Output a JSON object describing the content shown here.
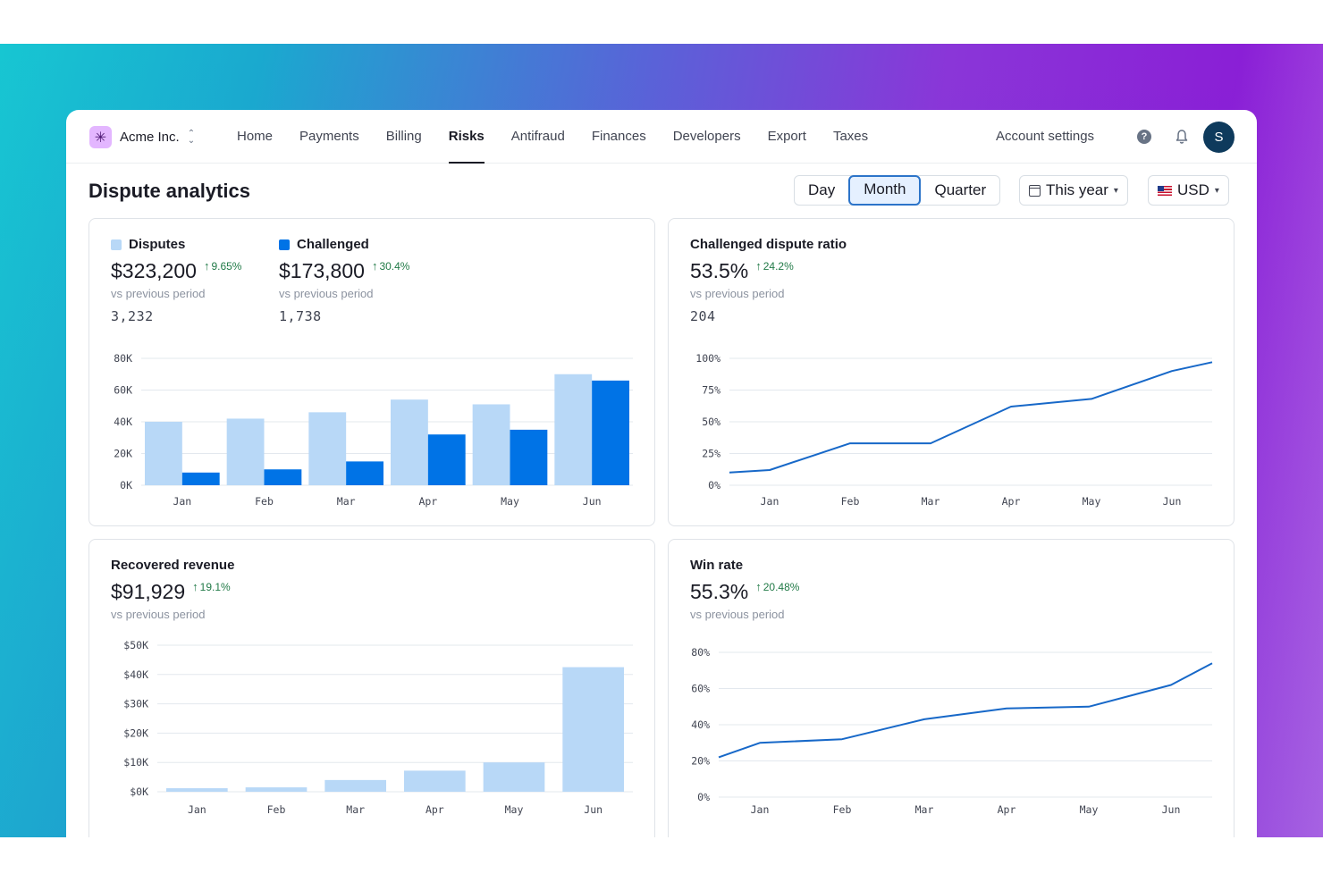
{
  "nav": {
    "brand": "Acme Inc.",
    "links": [
      "Home",
      "Payments",
      "Billing",
      "Risks",
      "Antifraud",
      "Finances",
      "Developers",
      "Export",
      "Taxes"
    ],
    "active": "Risks",
    "account_settings": "Account settings",
    "avatar_initial": "S",
    "icons": [
      "asterisk-logo-icon",
      "chevron-updown-icon",
      "help-icon",
      "bell-icon"
    ]
  },
  "page": {
    "title": "Dispute analytics",
    "granularity": [
      "Day",
      "Month",
      "Quarter"
    ],
    "granularity_selected": "Month",
    "range": "This year",
    "currency": "USD"
  },
  "colors": {
    "light_blue": "#b8d8f7",
    "dark_blue": "#0073e6",
    "line": "#1768c8",
    "positive": "#217a47"
  },
  "cards": {
    "disputes": {
      "label": "Disputes",
      "value": "$323,200",
      "delta": "9.65%",
      "sub": "vs previous period",
      "count": "3,232"
    },
    "challenged": {
      "label": "Challenged",
      "value": "$173,800",
      "delta": "30.4%",
      "sub": "vs previous period",
      "count": "1,738"
    },
    "ratio": {
      "label": "Challenged dispute ratio",
      "value": "53.5%",
      "delta": "24.2%",
      "sub": "vs previous period",
      "count": "204"
    },
    "recovered": {
      "label": "Recovered revenue",
      "value": "$91,929",
      "delta": "19.1%",
      "sub": "vs previous period"
    },
    "winrate": {
      "label": "Win rate",
      "value": "55.3%",
      "delta": "20.48%",
      "sub": "vs previous period"
    }
  },
  "chart_data": [
    {
      "type": "bar",
      "categories": [
        "Jan",
        "Feb",
        "Mar",
        "Apr",
        "May",
        "Jun"
      ],
      "series": [
        {
          "name": "Disputes",
          "values": [
            40,
            42,
            46,
            54,
            51,
            70
          ]
        },
        {
          "name": "Challenged",
          "values": [
            8,
            10,
            15,
            32,
            35,
            66
          ]
        }
      ],
      "yticks": [
        "0K",
        "20K",
        "40K",
        "60K",
        "80K"
      ],
      "ylim": [
        0,
        80
      ],
      "grid": true
    },
    {
      "type": "line",
      "categories": [
        "Jan",
        "Feb",
        "Mar",
        "Apr",
        "May",
        "Jun"
      ],
      "x": [
        0,
        0.5,
        1.5,
        2.5,
        3.5,
        4.5,
        5.5,
        6.5
      ],
      "values": [
        10,
        12,
        33,
        33,
        62,
        68,
        90,
        97
      ],
      "yticks": [
        "0%",
        "25%",
        "50%",
        "75%",
        "100%"
      ],
      "ylim": [
        0,
        100
      ],
      "grid": true
    },
    {
      "type": "bar",
      "categories": [
        "Jan",
        "Feb",
        "Mar",
        "Apr",
        "May",
        "Jun"
      ],
      "series": [
        {
          "name": "Recovered revenue",
          "values": [
            1.2,
            1.5,
            4,
            7.2,
            10,
            42.5
          ]
        }
      ],
      "yticks": [
        "$0K",
        "$10K",
        "$20K",
        "$30K",
        "$40K",
        "$50K"
      ],
      "ylim": [
        0,
        52
      ],
      "grid": true
    },
    {
      "type": "line",
      "categories": [
        "Jan",
        "Feb",
        "Mar",
        "Apr",
        "May",
        "Jun"
      ],
      "x": [
        -0.5,
        0,
        1,
        2,
        3,
        4,
        5,
        5.5
      ],
      "values": [
        22,
        30,
        32,
        43,
        49,
        50,
        62,
        74
      ],
      "yticks": [
        "0%",
        "20%",
        "40%",
        "60%",
        "80%"
      ],
      "ylim": [
        0,
        80
      ],
      "grid": true
    }
  ]
}
